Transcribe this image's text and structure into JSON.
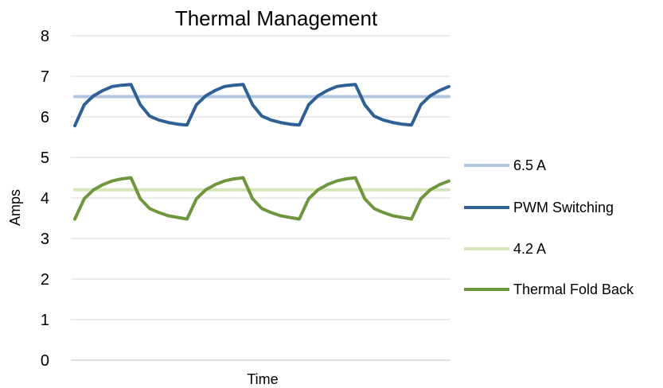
{
  "chart_data": {
    "type": "line",
    "title": "Thermal Management",
    "xlabel": "Time",
    "ylabel": "Amps",
    "ylim": [
      0,
      8
    ],
    "yticks": [
      0,
      1,
      2,
      3,
      4,
      5,
      6,
      7,
      8
    ],
    "grid": true,
    "legend_position": "right",
    "x": [
      0,
      1,
      2,
      3,
      4,
      5,
      6,
      7,
      8,
      9,
      10,
      11,
      12,
      13,
      14,
      15,
      16,
      17,
      18,
      19,
      20,
      21,
      22,
      23,
      24,
      25,
      26,
      27,
      28,
      29,
      30,
      31,
      32,
      33,
      34,
      35,
      36,
      37,
      38,
      39,
      40
    ],
    "series": [
      {
        "name": "6.5 A",
        "color": "#b3c6e1",
        "values": [
          6.5,
          6.5,
          6.5,
          6.5,
          6.5,
          6.5,
          6.5,
          6.5,
          6.5,
          6.5,
          6.5,
          6.5,
          6.5,
          6.5,
          6.5,
          6.5,
          6.5,
          6.5,
          6.5,
          6.5,
          6.5,
          6.5,
          6.5,
          6.5,
          6.5,
          6.5,
          6.5,
          6.5,
          6.5,
          6.5,
          6.5,
          6.5,
          6.5,
          6.5,
          6.5,
          6.5,
          6.5,
          6.5,
          6.5,
          6.5,
          6.5
        ]
      },
      {
        "name": "PWM Switching",
        "color": "#2e5f95",
        "values": [
          5.78,
          6.3,
          6.52,
          6.65,
          6.75,
          6.78,
          6.8,
          6.3,
          6.02,
          5.92,
          5.86,
          5.82,
          5.8,
          6.3,
          6.52,
          6.65,
          6.75,
          6.78,
          6.8,
          6.3,
          6.02,
          5.92,
          5.86,
          5.82,
          5.8,
          6.3,
          6.52,
          6.65,
          6.75,
          6.78,
          6.8,
          6.3,
          6.02,
          5.92,
          5.86,
          5.82,
          5.8,
          6.3,
          6.52,
          6.65,
          6.75
        ]
      },
      {
        "name": "4.2 A",
        "color": "#d4e6b8",
        "values": [
          4.2,
          4.2,
          4.2,
          4.2,
          4.2,
          4.2,
          4.2,
          4.2,
          4.2,
          4.2,
          4.2,
          4.2,
          4.2,
          4.2,
          4.2,
          4.2,
          4.2,
          4.2,
          4.2,
          4.2,
          4.2,
          4.2,
          4.2,
          4.2,
          4.2,
          4.2,
          4.2,
          4.2,
          4.2,
          4.2,
          4.2,
          4.2,
          4.2,
          4.2,
          4.2,
          4.2,
          4.2,
          4.2,
          4.2,
          4.2,
          4.2
        ]
      },
      {
        "name": "Thermal Fold Back",
        "color": "#6e963c",
        "values": [
          3.48,
          3.98,
          4.2,
          4.33,
          4.42,
          4.47,
          4.5,
          3.98,
          3.74,
          3.64,
          3.56,
          3.52,
          3.48,
          3.98,
          4.2,
          4.33,
          4.42,
          4.47,
          4.5,
          3.98,
          3.74,
          3.64,
          3.56,
          3.52,
          3.48,
          3.98,
          4.2,
          4.33,
          4.42,
          4.47,
          4.5,
          3.98,
          3.74,
          3.64,
          3.56,
          3.52,
          3.48,
          3.98,
          4.2,
          4.33,
          4.42
        ]
      }
    ]
  }
}
